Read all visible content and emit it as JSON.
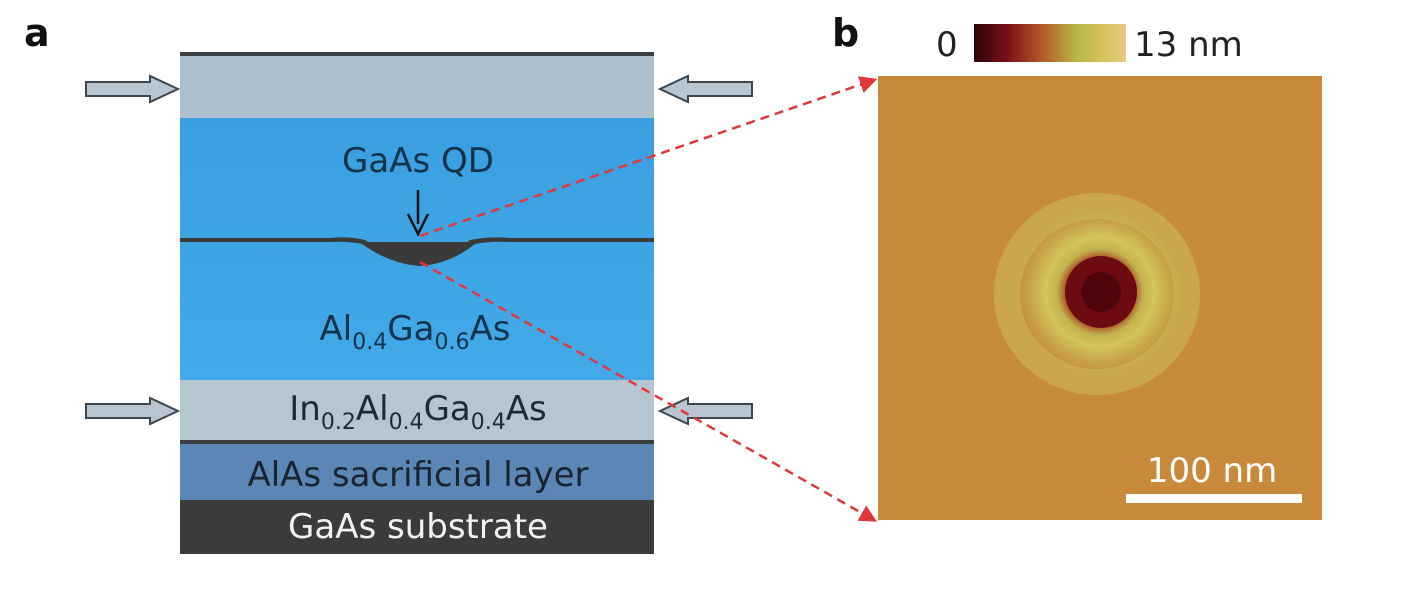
{
  "panel_a": {
    "label": "a",
    "qd_label": "GaAs QD",
    "barrier": {
      "base1": "Al",
      "sub1": "0.4",
      "base2": "Ga",
      "sub2": "0.6",
      "base3": "As"
    },
    "stressor": {
      "base1": "In",
      "sub1": "0.2",
      "base2": "Al",
      "sub2": "0.4",
      "base3": "Ga",
      "sub3": "0.4",
      "base4": "As"
    },
    "sacrificial_label": "AlAs sacrificial layer",
    "substrate_label": "GaAs substrate",
    "colors": {
      "top_layer": "#adbfcc",
      "algaas": "#3ea7e6",
      "ingaalas": "#b6c6d1",
      "alas": "#5b86b6",
      "substrate": "#3b3b3d",
      "qd": "#3a3a3a",
      "arrow_fill": "#b9c6d2",
      "arrow_stroke": "#3c4750"
    }
  },
  "panel_b": {
    "label": "b",
    "colorbar_min": "0",
    "colorbar_max": "13 nm",
    "scalebar_label": "100 nm",
    "colors": {
      "background": "#c88a3a",
      "ring": "#c9c05a",
      "pit": "#6e0a12",
      "dashed_line": "#e0383a"
    }
  }
}
